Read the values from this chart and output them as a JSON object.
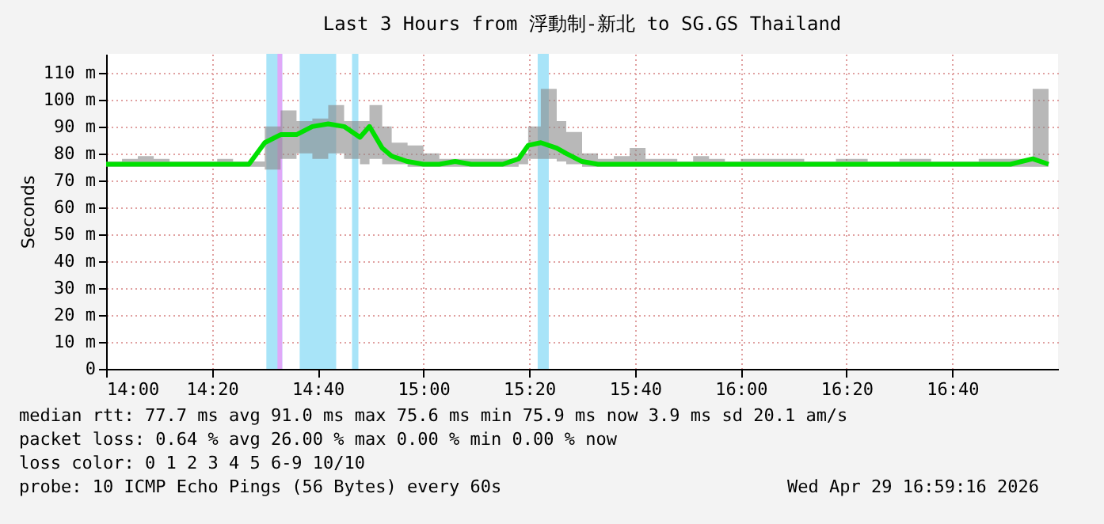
{
  "chart_data": {
    "type": "line",
    "title": "Last 3 Hours from 浮動制-新北 to SG.GS Thailand",
    "ylabel": "Seconds",
    "x": [
      14.0,
      14.05,
      14.1,
      14.15,
      14.2,
      14.25,
      14.3,
      14.35,
      14.4,
      14.45,
      14.5,
      14.55,
      14.6,
      14.65,
      14.7,
      14.75,
      14.8,
      14.83,
      14.87,
      14.9,
      14.95,
      15.0,
      15.05,
      15.1,
      15.15,
      15.2,
      15.25,
      15.3,
      15.33,
      15.37,
      15.42,
      15.45,
      15.5,
      15.55,
      15.6,
      15.65,
      15.7,
      15.75,
      15.8,
      15.85,
      15.9,
      15.95,
      16.0,
      16.1,
      16.2,
      16.3,
      16.4,
      16.5,
      16.6,
      16.75,
      16.85,
      16.92,
      16.97
    ],
    "series": [
      {
        "color": "#00e000",
        "values": [
          76,
          76,
          76,
          76,
          76,
          76,
          76,
          76,
          76,
          76,
          84,
          87,
          87,
          90,
          91,
          90,
          86,
          90,
          82,
          79,
          77,
          76,
          76,
          77,
          76,
          76,
          76,
          78,
          83,
          84,
          82,
          80,
          77,
          76,
          76,
          76,
          76,
          76,
          76,
          76,
          76,
          76,
          76,
          76,
          76,
          76,
          76,
          76,
          76,
          76,
          76,
          78,
          76
        ],
        "lower": [
          75,
          75,
          75,
          75,
          75,
          75,
          75,
          75,
          75,
          75,
          74,
          78,
          80,
          78,
          80,
          78,
          76,
          78,
          76,
          76,
          75,
          75,
          75,
          75,
          75,
          75,
          75,
          76,
          78,
          78,
          77,
          76,
          75,
          75,
          75,
          75,
          75,
          75,
          75,
          75,
          75,
          75,
          75,
          75,
          75,
          75,
          75,
          75,
          75,
          75,
          75,
          75,
          75
        ],
        "upper": [
          77,
          78,
          79,
          78,
          77,
          77,
          77,
          78,
          77,
          77,
          90,
          96,
          92,
          93,
          98,
          92,
          92,
          98,
          90,
          84,
          83,
          80,
          78,
          78,
          78,
          78,
          78,
          80,
          90,
          104,
          92,
          88,
          80,
          78,
          79,
          82,
          78,
          78,
          77,
          79,
          78,
          77,
          78,
          78,
          77,
          78,
          77,
          78,
          77,
          78,
          78,
          104,
          77
        ]
      }
    ],
    "xlim": [
      14,
      17
    ],
    "ylim": [
      0,
      117
    ],
    "xticks": [
      {
        "value": 14,
        "label": "14:00"
      },
      {
        "value": 14.3333,
        "label": "14:20"
      },
      {
        "value": 14.6667,
        "label": "14:40"
      },
      {
        "value": 15,
        "label": "15:00"
      },
      {
        "value": 15.3333,
        "label": "15:20"
      },
      {
        "value": 15.6667,
        "label": "15:40"
      },
      {
        "value": 16,
        "label": "16:00"
      },
      {
        "value": 16.3333,
        "label": "16:20"
      },
      {
        "value": 16.6667,
        "label": "16:40"
      }
    ],
    "yticks": [
      {
        "value": 0,
        "label": "0"
      },
      {
        "value": 10,
        "label": "10 m"
      },
      {
        "value": 20,
        "label": "20 m"
      },
      {
        "value": 30,
        "label": "30 m"
      },
      {
        "value": 40,
        "label": "40 m"
      },
      {
        "value": 50,
        "label": "50 m"
      },
      {
        "value": 60,
        "label": "60 m"
      },
      {
        "value": 70,
        "label": "70 m"
      },
      {
        "value": 80,
        "label": "80 m"
      },
      {
        "value": 90,
        "label": "90 m"
      },
      {
        "value": 100,
        "label": "100 m"
      },
      {
        "value": 110,
        "label": "110 m"
      }
    ],
    "bands": [
      {
        "axis": "x",
        "from": 14.505,
        "to": 14.555,
        "color": "#a8e4f8"
      },
      {
        "axis": "x",
        "from": 14.54,
        "to": 14.555,
        "color": "#e0a8f8"
      },
      {
        "axis": "x",
        "from": 14.61,
        "to": 14.725,
        "color": "#a8e4f8"
      },
      {
        "axis": "x",
        "from": 14.775,
        "to": 14.795,
        "color": "#a8e4f8"
      },
      {
        "axis": "x",
        "from": 15.36,
        "to": 15.395,
        "color": "#a8e4f8"
      }
    ],
    "grid": true,
    "line_style": "solid",
    "annotations": [
      "median rtt:  77.7 ms avg  91.0 ms max  75.6 ms min  75.9 ms now  3.9 ms sd  20.1   am/s",
      "packet loss: 0.64 % avg  26.00 % max  0.00 % min  0.00 % now",
      "loss color:  0  1  2  3  4  5  6-9  10/10",
      "probe:       10 ICMP Echo Pings (56 Bytes) every 60s",
      "Wed Apr 29 16:59:16 2026"
    ]
  }
}
